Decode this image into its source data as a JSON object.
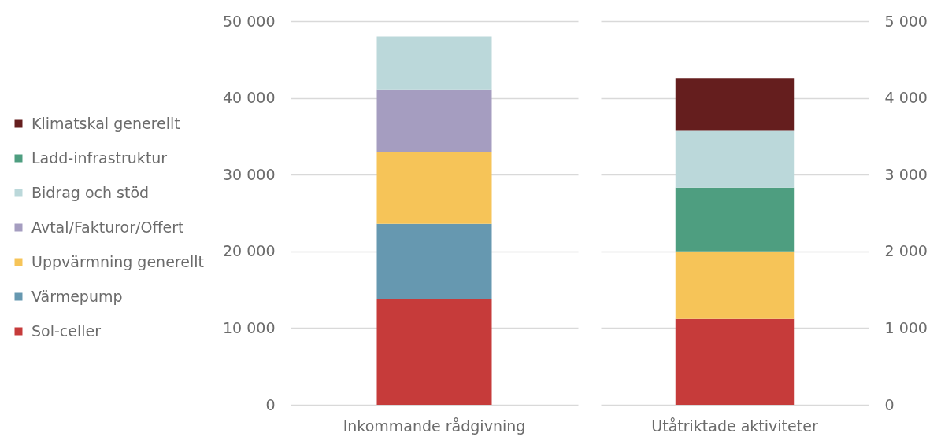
{
  "chart_data": [
    {
      "type": "bar",
      "stacked": true,
      "categories": [
        "Inkommande rådgivning"
      ],
      "series": [
        {
          "name": "Sol-celler",
          "color": "#c63b3a",
          "values": [
            13800
          ]
        },
        {
          "name": "Värmepump",
          "color": "#6698b0",
          "values": [
            9800
          ]
        },
        {
          "name": "Uppvärmning generellt",
          "color": "#f6c458",
          "values": [
            9300
          ]
        },
        {
          "name": "Avtal/Fakturor/Offert",
          "color": "#a59dc0",
          "values": [
            8200
          ]
        },
        {
          "name": "Bidrag och stöd",
          "color": "#bbd8da",
          "values": [
            6900
          ]
        }
      ],
      "ylim": [
        0,
        50000
      ],
      "yticks": [
        0,
        {
          "value": 10000,
          "label": "10 000"
        },
        {
          "value": 20000,
          "label": "20 000"
        },
        {
          "value": 30000,
          "label": "30 000"
        },
        {
          "value": 40000,
          "label": "40 000"
        },
        {
          "value": 50000,
          "label": "50 000"
        }
      ],
      "grid": "y",
      "legend": "left"
    },
    {
      "type": "bar",
      "stacked": true,
      "categories": [
        "Utåtriktade aktiviteter"
      ],
      "series": [
        {
          "name": "Sol-celler",
          "color": "#c63b3a",
          "values": [
            1120
          ]
        },
        {
          "name": "Uppvärmning generellt",
          "color": "#f6c458",
          "values": [
            880
          ]
        },
        {
          "name": "Ladd-infrastruktur",
          "color": "#4e9e80",
          "values": [
            830
          ]
        },
        {
          "name": "Bidrag och stöd",
          "color": "#bbd8da",
          "values": [
            740
          ]
        },
        {
          "name": "Klimatskal generellt",
          "color": "#651e1e",
          "values": [
            690
          ]
        }
      ],
      "ylim": [
        0,
        5000
      ],
      "yticks": [
        0,
        {
          "value": 1000,
          "label": "1 000"
        },
        {
          "value": 2000,
          "label": "2 000"
        },
        {
          "value": 3000,
          "label": "3 000"
        },
        {
          "value": 4000,
          "label": "4 000"
        },
        {
          "value": 5000,
          "label": "5 000"
        }
      ],
      "grid": "y",
      "legend": "left"
    }
  ]
}
